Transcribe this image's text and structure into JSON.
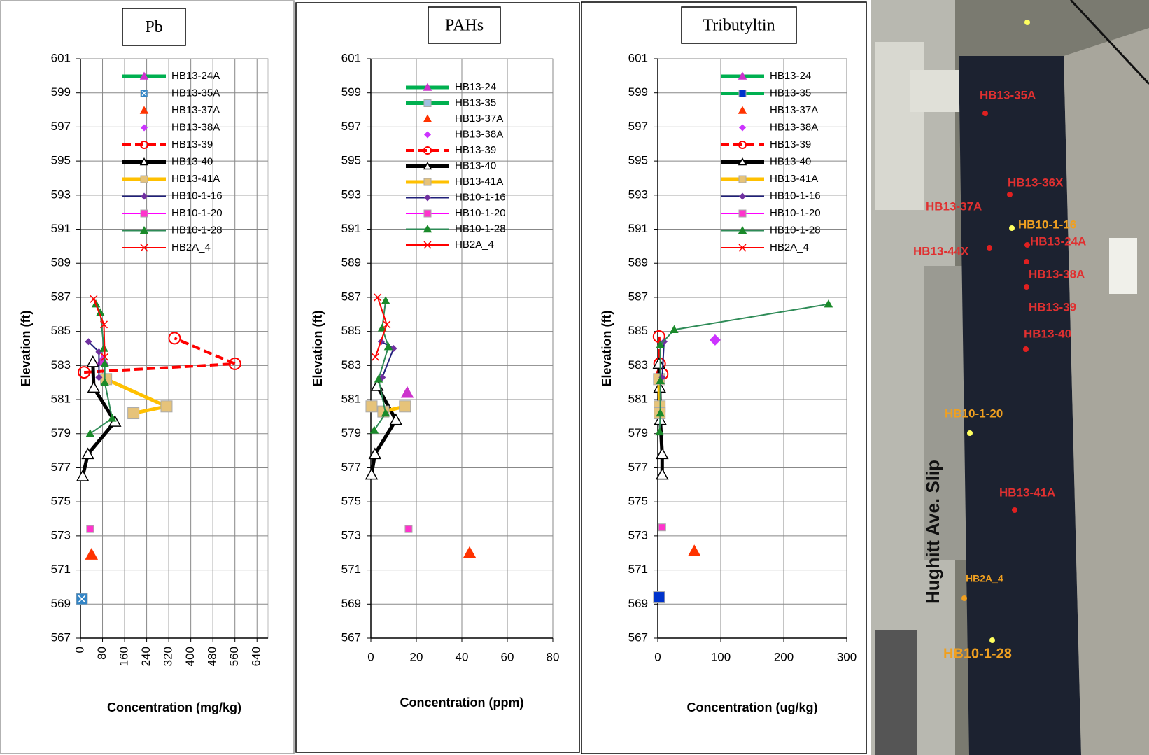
{
  "chart_data": [
    {
      "type": "line",
      "title": "Pb",
      "xlabel": "Concentration (mg/kg)",
      "ylabel": "Elevation (ft)",
      "xlim": [
        0,
        680
      ],
      "xticks": [
        0,
        80,
        160,
        240,
        320,
        400,
        480,
        560,
        640
      ],
      "rotate_xticks": true,
      "ylim": [
        567,
        601
      ],
      "yticks": [
        567,
        569,
        571,
        573,
        575,
        577,
        579,
        581,
        583,
        585,
        587,
        589,
        591,
        593,
        595,
        597,
        599,
        601
      ],
      "grid": true,
      "series": [
        {
          "name": "HB13-24A",
          "color": "#00b050",
          "line_width": 5,
          "marker": "triangle",
          "marker_color": "#cc33cc",
          "x": [
            80
          ],
          "y": [
            583.3
          ]
        },
        {
          "name": "HB13-35A",
          "color": "#1f77b4",
          "line_width": 0,
          "marker": "square-x",
          "marker_color": "#3385c6",
          "x": [
            5
          ],
          "y": [
            569.3
          ]
        },
        {
          "name": "HB13-37A",
          "color": "#ff3300",
          "line_width": 0,
          "marker": "triangle",
          "marker_color": "#ff3300",
          "x": [
            40
          ],
          "y": [
            571.9
          ]
        },
        {
          "name": "HB13-38A",
          "color": "#cc33ff",
          "line_width": 0,
          "marker": "diamond",
          "marker_color": "#cc33ff",
          "x": [],
          "y": []
        },
        {
          "name": "HB13-39",
          "color": "#ff0000",
          "line_width": 4,
          "dashed": true,
          "marker": "circle-open",
          "marker_color": "#ff0000",
          "x": [
            13,
            560,
            341
          ],
          "y": [
            582.6,
            583.1,
            584.6
          ]
        },
        {
          "name": "HB13-40",
          "color": "#000000",
          "line_width": 5,
          "marker": "triangle-open",
          "marker_color": "#000000",
          "x": [
            8,
            27,
            125,
            48,
            45
          ],
          "y": [
            576.5,
            577.8,
            579.7,
            581.7,
            583.2
          ]
        },
        {
          "name": "HB13-41A",
          "color": "#ffc000",
          "line_width": 5,
          "marker": "square",
          "marker_color": "#e6c37a",
          "x": [
            93,
            312,
            192
          ],
          "y": [
            582.2,
            580.6,
            580.2
          ]
        },
        {
          "name": "HB10-1-16",
          "color": "#1f1f7a",
          "line_width": 2,
          "marker": "diamond",
          "marker_color": "#7030a0",
          "x": [
            29,
            67,
            67
          ],
          "y": [
            584.4,
            583.8,
            582.3
          ]
        },
        {
          "name": "HB10-1-20",
          "color": "#ff00ff",
          "line_width": 2,
          "marker": "square",
          "marker_color": "#ff33cc",
          "x": [
            35
          ],
          "y": [
            573.4
          ]
        },
        {
          "name": "HB10-1-28",
          "color": "#2e8b57",
          "line_width": 2,
          "marker": "triangle",
          "marker_color": "#1a8a2a",
          "x": [
            56,
            72,
            85,
            88,
            88,
            115,
            35
          ],
          "y": [
            586.6,
            586.1,
            584.0,
            583.1,
            582.0,
            579.9,
            579.0
          ]
        },
        {
          "name": "HB2A_4",
          "color": "#ff0000",
          "line_width": 2,
          "marker": "x",
          "marker_color": "#ff0000",
          "x": [
            48,
            85,
            88
          ],
          "y": [
            586.9,
            585.4,
            583.5
          ]
        }
      ]
    },
    {
      "type": "line",
      "title": "PAHs",
      "xlabel": "Concentration (ppm)",
      "ylabel": "Elevation (ft)",
      "xlim": [
        0,
        80
      ],
      "xticks": [
        0,
        20,
        40,
        60,
        80
      ],
      "rotate_xticks": false,
      "ylim": [
        567,
        601
      ],
      "yticks": [
        567,
        569,
        571,
        573,
        575,
        577,
        579,
        581,
        583,
        585,
        587,
        589,
        591,
        593,
        595,
        597,
        599,
        601
      ],
      "grid": true,
      "series": [
        {
          "name": "HB13-24",
          "color": "#00b050",
          "line_width": 5,
          "marker": "triangle",
          "marker_color": "#cc33cc",
          "x": [
            16
          ],
          "y": [
            581.4
          ]
        },
        {
          "name": "HB13-35",
          "color": "#00b050",
          "line_width": 5,
          "marker": "square",
          "marker_color": "#a0c0e0",
          "x": [],
          "y": []
        },
        {
          "name": "HB13-37A",
          "color": "#ff3300",
          "line_width": 0,
          "marker": "triangle",
          "marker_color": "#ff3300",
          "x": [
            43.4
          ],
          "y": [
            572.0
          ]
        },
        {
          "name": "HB13-38A",
          "color": "#cc33ff",
          "line_width": 0,
          "marker": "diamond",
          "marker_color": "#cc33ff",
          "x": [],
          "y": []
        },
        {
          "name": "HB13-39",
          "color": "#ff0000",
          "line_width": 4,
          "dashed": true,
          "marker": "circle-open",
          "marker_color": "#ff0000",
          "x": [],
          "y": []
        },
        {
          "name": "HB13-40",
          "color": "#000000",
          "line_width": 5,
          "marker": "triangle-open",
          "marker_color": "#000000",
          "x": [
            0.3,
            1.8,
            11,
            2.8
          ],
          "y": [
            576.6,
            577.8,
            579.8,
            581.8
          ]
        },
        {
          "name": "HB13-41A",
          "color": "#ffc000",
          "line_width": 5,
          "marker": "square",
          "marker_color": "#e6c37a",
          "x": [
            0.3,
            5.5,
            15
          ],
          "y": [
            580.6,
            580.3,
            580.6
          ]
        },
        {
          "name": "HB10-1-16",
          "color": "#1f1f7a",
          "line_width": 2,
          "marker": "diamond",
          "marker_color": "#7030a0",
          "x": [
            4.6,
            10,
            5
          ],
          "y": [
            584.4,
            584.0,
            582.3
          ]
        },
        {
          "name": "HB10-1-20",
          "color": "#ff00ff",
          "line_width": 2,
          "marker": "square",
          "marker_color": "#ff33cc",
          "x": [
            16.6
          ],
          "y": [
            573.4
          ]
        },
        {
          "name": "HB10-1-28",
          "color": "#2e8b57",
          "line_width": 2,
          "marker": "triangle",
          "marker_color": "#1a8a2a",
          "x": [
            6.5,
            5,
            7.7,
            3.4,
            6.5,
            1.5
          ],
          "y": [
            586.8,
            585.2,
            584.1,
            582.2,
            580.2,
            579.2
          ]
        },
        {
          "name": "HB2A_4",
          "color": "#ff0000",
          "line_width": 2,
          "marker": "x",
          "marker_color": "#ff0000",
          "x": [
            3,
            7,
            2
          ],
          "y": [
            587.0,
            585.4,
            583.5
          ]
        }
      ]
    },
    {
      "type": "line",
      "title": "Tributyltin",
      "xlabel": "Concentration (ug/kg)",
      "ylabel": "Elevation (ft)",
      "xlim": [
        0,
        300
      ],
      "xticks": [
        0,
        100,
        200,
        300
      ],
      "rotate_xticks": false,
      "ylim": [
        567,
        601
      ],
      "yticks": [
        567,
        569,
        571,
        573,
        575,
        577,
        579,
        581,
        583,
        585,
        587,
        589,
        591,
        593,
        595,
        597,
        599,
        601
      ],
      "grid": true,
      "series": [
        {
          "name": "HB13-24",
          "color": "#00b050",
          "line_width": 5,
          "marker": "triangle",
          "marker_color": "#cc33cc",
          "x": [],
          "y": []
        },
        {
          "name": "HB13-35",
          "color": "#00b050",
          "line_width": 5,
          "marker": "square",
          "marker_color": "#0033cc",
          "x": [
            2
          ],
          "y": [
            569.4
          ]
        },
        {
          "name": "HB13-37A",
          "color": "#ff3300",
          "line_width": 0,
          "marker": "triangle",
          "marker_color": "#ff3300",
          "x": [
            58
          ],
          "y": [
            572.1
          ]
        },
        {
          "name": "HB13-38A",
          "color": "#cc33ff",
          "line_width": 0,
          "marker": "diamond",
          "marker_color": "#cc33ff",
          "x": [
            91
          ],
          "y": [
            584.5
          ]
        },
        {
          "name": "HB13-39",
          "color": "#ff0000",
          "line_width": 4,
          "dashed": true,
          "marker": "circle-open",
          "marker_color": "#ff0000",
          "x": [
            2,
            3,
            7
          ],
          "y": [
            584.7,
            583.1,
            582.5
          ]
        },
        {
          "name": "HB13-40",
          "color": "#000000",
          "line_width": 5,
          "marker": "triangle-open",
          "marker_color": "#000000",
          "x": [
            7,
            7,
            4,
            3,
            2
          ],
          "y": [
            576.6,
            577.8,
            579.8,
            581.7,
            583.1
          ]
        },
        {
          "name": "HB13-41A",
          "color": "#ffc000",
          "line_width": 5,
          "marker": "square",
          "marker_color": "#e6c37a",
          "x": [
            2,
            3,
            3
          ],
          "y": [
            582.2,
            580.6,
            580.2
          ]
        },
        {
          "name": "HB10-1-16",
          "color": "#1f1f7a",
          "line_width": 2,
          "marker": "diamond",
          "marker_color": "#7030a0",
          "x": [
            10,
            7
          ],
          "y": [
            584.4,
            582.3
          ]
        },
        {
          "name": "HB10-1-20",
          "color": "#ff00ff",
          "line_width": 2,
          "marker": "square",
          "marker_color": "#ff33cc",
          "x": [
            7
          ],
          "y": [
            573.5
          ]
        },
        {
          "name": "HB10-1-28",
          "color": "#2e8b57",
          "line_width": 2,
          "marker": "triangle",
          "marker_color": "#1a8a2a",
          "x": [
            271,
            26,
            4,
            4,
            4,
            3
          ],
          "y": [
            586.6,
            585.1,
            584.2,
            582.1,
            580.2,
            579.1
          ]
        },
        {
          "name": "HB2A_4",
          "color": "#ff0000",
          "line_width": 2,
          "marker": "x",
          "marker_color": "#ff0000",
          "x": [],
          "y": []
        }
      ]
    }
  ],
  "map": {
    "labels": [
      "HB13-35A",
      "HB13-36X",
      "HB13-37A",
      "HB10-1-16",
      "HB13-24A",
      "HB13-44X",
      "HB13-38A",
      "HB13-39",
      "HB13-40",
      "HB10-1-20",
      "HB13-41A",
      "HB2A_4",
      "HB10-1-28",
      "Hughitt Ave.  Slip"
    ]
  }
}
